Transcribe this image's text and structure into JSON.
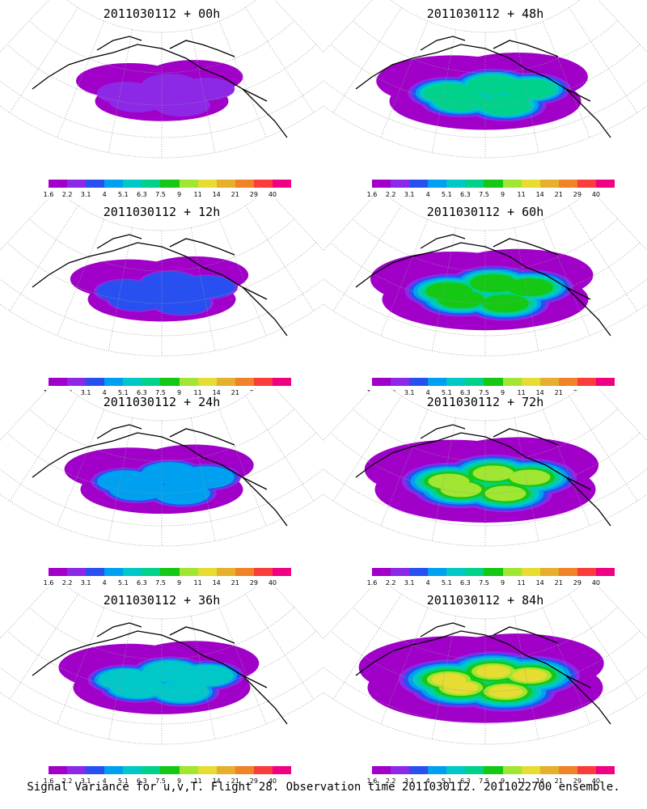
{
  "panels": [
    {
      "title": "2011030112 + 00h",
      "intensity": 0
    },
    {
      "title": "2011030112 + 48h",
      "intensity": 4
    },
    {
      "title": "2011030112 + 12h",
      "intensity": 1
    },
    {
      "title": "2011030112 + 60h",
      "intensity": 5
    },
    {
      "title": "2011030112 + 24h",
      "intensity": 2
    },
    {
      "title": "2011030112 + 72h",
      "intensity": 6
    },
    {
      "title": "2011030112 + 36h",
      "intensity": 3
    },
    {
      "title": "2011030112 + 84h",
      "intensity": 7
    }
  ],
  "colorbar": {
    "labels": [
      "1.6",
      "2.2",
      "3.1",
      "4",
      "5.1",
      "6.3",
      "7.5",
      "9",
      "11",
      "14",
      "21",
      "29",
      "40"
    ],
    "colors": [
      "#a000c8",
      "#8c28e6",
      "#2850f0",
      "#00a0f0",
      "#00c8c8",
      "#00d28c",
      "#14c814",
      "#a0e632",
      "#e6dc32",
      "#e6af2d",
      "#f08228",
      "#fa3c3c",
      "#f00082"
    ]
  },
  "caption": "Signal Variance for u,v,T. Flight 28. Observation time 2011030112. 2011022700 ensemble."
}
